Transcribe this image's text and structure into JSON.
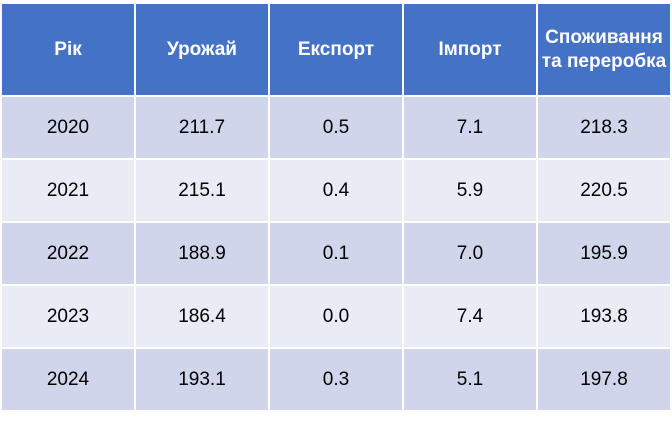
{
  "table": {
    "header": [
      "Рік",
      "Урожай",
      "Експорт",
      "Імпорт",
      "Споживання та переробка"
    ],
    "rows": [
      [
        "2020",
        "211.7",
        "0.5",
        "7.1",
        "218.3"
      ],
      [
        "2021",
        "215.1",
        "0.4",
        "5.9",
        "220.5"
      ],
      [
        "2022",
        "188.9",
        "0.1",
        "7.0",
        "195.9"
      ],
      [
        "2023",
        "186.4",
        "0.0",
        "7.4",
        "193.8"
      ],
      [
        "2024",
        "193.1",
        "0.3",
        "5.1",
        "197.8"
      ]
    ]
  }
}
